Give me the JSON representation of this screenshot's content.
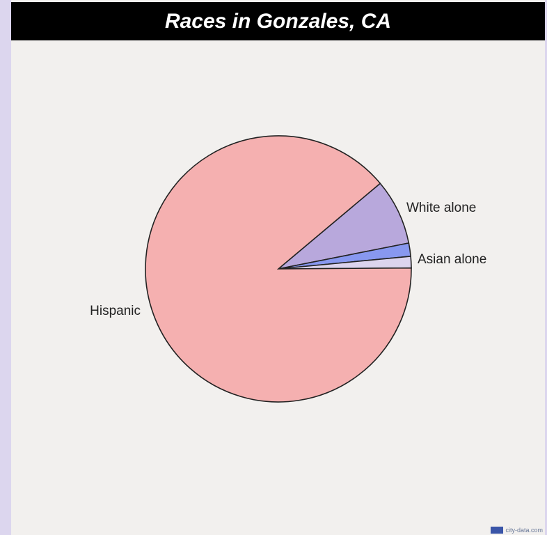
{
  "chart_data": {
    "type": "pie",
    "title": "Races in Gonzales, CA",
    "slices": [
      {
        "label": "Hispanic",
        "value": 89.0,
        "color": "#f5b0b0"
      },
      {
        "label": "White alone",
        "value": 8.0,
        "color": "#b8a8dc"
      },
      {
        "label": "Asian alone",
        "value": 1.6,
        "color": "#8898f0"
      },
      {
        "label": "",
        "value": 1.4,
        "color": "#dcd4ee"
      }
    ]
  },
  "watermark": {
    "text": "city-data.com"
  }
}
